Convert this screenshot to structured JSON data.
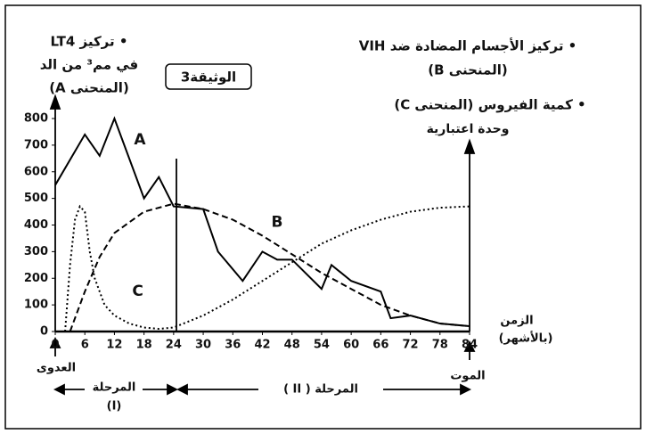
{
  "chart_data": {
    "type": "line",
    "document_label": "الوثيقة3",
    "left_label": [
      "• تركيز LT4",
      "في مم³ من الد",
      "(المنحنى A)"
    ],
    "right_label_b": [
      "• تركيز الأجسام المضادة ضد VIH",
      "(المنحنى B)"
    ],
    "right_label_c": [
      "• كمية الفيروس (المنحنى C)",
      "وحدة اعتبارية"
    ],
    "x_label": [
      "الزمن",
      "(بالأشهر)"
    ],
    "annotations": {
      "infection": "العدوى",
      "death": "الموت",
      "phase1": [
        "المرحلة",
        "(I)"
      ],
      "phase2": "المرحلة ( II )"
    },
    "xlim": [
      0,
      84
    ],
    "xticks": [
      0,
      6,
      12,
      18,
      24,
      30,
      36,
      42,
      48,
      54,
      60,
      66,
      72,
      78,
      84
    ],
    "ylim": [
      0,
      800
    ],
    "yticks": [
      0,
      100,
      200,
      300,
      400,
      500,
      600,
      700,
      800
    ],
    "series": [
      {
        "name": "A",
        "color": "#000",
        "style": "solid",
        "x": [
          0,
          6,
          9,
          12,
          18,
          21,
          24,
          30,
          33,
          38,
          42,
          45,
          48,
          54,
          56,
          60,
          66,
          68,
          72,
          78,
          84
        ],
        "values": [
          550,
          740,
          660,
          800,
          500,
          580,
          470,
          460,
          300,
          190,
          300,
          270,
          270,
          160,
          250,
          190,
          150,
          50,
          60,
          30,
          20
        ]
      },
      {
        "name": "B",
        "color": "#000",
        "style": "dashed",
        "x": [
          3,
          6,
          9,
          12,
          18,
          24,
          30,
          36,
          42,
          48,
          54,
          60,
          66,
          72,
          78,
          84
        ],
        "values": [
          0,
          150,
          280,
          370,
          450,
          480,
          460,
          420,
          360,
          290,
          220,
          160,
          100,
          60,
          30,
          20
        ]
      },
      {
        "name": "C",
        "color": "#000",
        "style": "dotted",
        "x": [
          2,
          3,
          4,
          5,
          6,
          7,
          8,
          10,
          12,
          15,
          18,
          21,
          24,
          30,
          36,
          42,
          48,
          54,
          60,
          66,
          72,
          78,
          84
        ],
        "values": [
          0,
          250,
          420,
          470,
          450,
          300,
          200,
          100,
          60,
          30,
          15,
          10,
          15,
          60,
          120,
          190,
          260,
          330,
          380,
          420,
          450,
          465,
          470
        ]
      }
    ]
  }
}
